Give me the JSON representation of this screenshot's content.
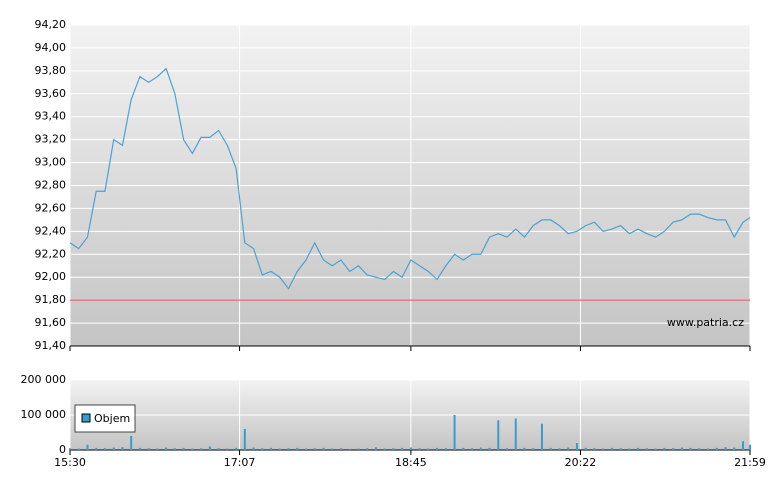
{
  "chart_data": [
    {
      "type": "line",
      "watermark": "www.patria.cz",
      "x": [
        "15:30",
        "15:35",
        "15:40",
        "15:45",
        "15:50",
        "15:55",
        "16:00",
        "16:05",
        "16:10",
        "16:15",
        "16:20",
        "16:25",
        "16:30",
        "16:35",
        "16:40",
        "16:45",
        "16:50",
        "16:55",
        "17:00",
        "17:05",
        "17:10",
        "17:15",
        "17:20",
        "17:25",
        "17:30",
        "17:35",
        "17:40",
        "17:45",
        "17:50",
        "17:55",
        "18:00",
        "18:05",
        "18:10",
        "18:15",
        "18:20",
        "18:25",
        "18:30",
        "18:35",
        "18:40",
        "18:45",
        "18:50",
        "18:55",
        "19:00",
        "19:05",
        "19:10",
        "19:15",
        "19:20",
        "19:25",
        "19:30",
        "19:35",
        "19:40",
        "19:45",
        "19:50",
        "19:55",
        "20:00",
        "20:05",
        "20:10",
        "20:15",
        "20:20",
        "20:25",
        "20:30",
        "20:35",
        "20:40",
        "20:45",
        "20:50",
        "20:55",
        "21:00",
        "21:05",
        "21:10",
        "21:15",
        "21:20",
        "21:25",
        "21:30",
        "21:35",
        "21:40",
        "21:45",
        "21:50",
        "21:55",
        "21:59"
      ],
      "series": [
        {
          "color": "#4aa3d1",
          "values": [
            92.3,
            92.25,
            92.35,
            92.75,
            92.75,
            93.2,
            93.15,
            93.55,
            93.75,
            93.7,
            93.75,
            93.82,
            93.6,
            93.2,
            93.08,
            93.22,
            93.22,
            93.28,
            93.15,
            92.95,
            92.3,
            92.25,
            92.02,
            92.05,
            92.0,
            91.9,
            92.05,
            92.15,
            92.3,
            92.15,
            92.1,
            92.15,
            92.05,
            92.1,
            92.02,
            92.0,
            91.98,
            92.05,
            92.0,
            92.15,
            92.1,
            92.05,
            91.98,
            92.1,
            92.2,
            92.15,
            92.2,
            92.2,
            92.35,
            92.38,
            92.35,
            92.42,
            92.35,
            92.45,
            92.5,
            92.5,
            92.45,
            92.38,
            92.4,
            92.45,
            92.48,
            92.4,
            92.42,
            92.45,
            92.38,
            92.42,
            92.38,
            92.35,
            92.4,
            92.48,
            92.5,
            92.55,
            92.55,
            92.52,
            92.5,
            92.5,
            92.35,
            92.48,
            92.52
          ]
        }
      ],
      "reference_line": {
        "value": 91.8,
        "color": "#e05050"
      },
      "ylim": [
        91.4,
        94.2
      ],
      "yticks": [
        {
          "value": 91.4,
          "label": "91,40"
        },
        {
          "value": 91.6,
          "label": "91,60"
        },
        {
          "value": 91.8,
          "label": "91,80"
        },
        {
          "value": 92.0,
          "label": "92,00"
        },
        {
          "value": 92.2,
          "label": "92,20"
        },
        {
          "value": 92.4,
          "label": "92,40"
        },
        {
          "value": 92.6,
          "label": "92,60"
        },
        {
          "value": 92.8,
          "label": "92,80"
        },
        {
          "value": 93.0,
          "label": "93,00"
        },
        {
          "value": 93.2,
          "label": "93,20"
        },
        {
          "value": 93.4,
          "label": "93,40"
        },
        {
          "value": 93.6,
          "label": "93,60"
        },
        {
          "value": 93.8,
          "label": "93,80"
        },
        {
          "value": 94.0,
          "label": "94,00"
        },
        {
          "value": 94.2,
          "label": "94,20"
        }
      ],
      "grid": true
    },
    {
      "type": "bar",
      "legend": "top-left",
      "series": [
        {
          "name": "Objem",
          "color": "#3a9ccc",
          "values": [
            5000,
            4000,
            15000,
            6000,
            5000,
            7000,
            8000,
            40000,
            6000,
            5000,
            4000,
            7000,
            5000,
            6000,
            4000,
            5000,
            10000,
            5000,
            4000,
            6000,
            60000,
            7000,
            5000,
            6000,
            4000,
            5000,
            6000,
            4000,
            5000,
            6000,
            4000,
            5000,
            3000,
            4000,
            5000,
            8000,
            4000,
            5000,
            6000,
            7000,
            5000,
            4000,
            6000,
            5000,
            100000,
            6000,
            5000,
            7000,
            6000,
            85000,
            5000,
            90000,
            6000,
            5000,
            75000,
            6000,
            5000,
            7000,
            20000,
            6000,
            5000,
            4000,
            6000,
            5000,
            4000,
            6000,
            5000,
            4000,
            6000,
            5000,
            7000,
            6000,
            5000,
            4000,
            6000,
            8000,
            7000,
            25000,
            15000
          ]
        }
      ],
      "ylim": [
        0,
        200000
      ],
      "yticks": [
        0,
        {
          "value": 100000,
          "label": "100 000"
        },
        {
          "value": 200000,
          "label": "200 000"
        }
      ],
      "xticks": [
        "15:30",
        "17:07",
        "18:45",
        "20:22",
        "21:59"
      ],
      "grid": true
    }
  ]
}
